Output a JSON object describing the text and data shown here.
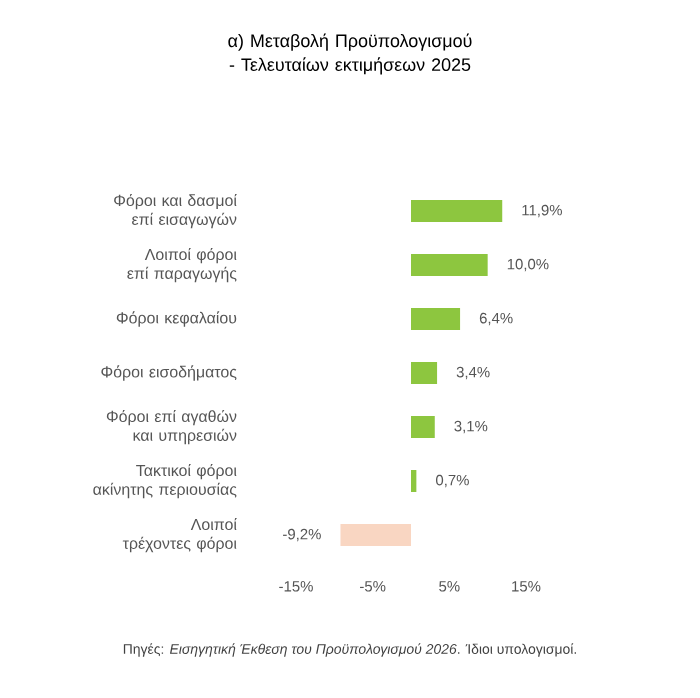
{
  "chart_data": {
    "type": "bar",
    "orientation": "horizontal",
    "title": "α) Μεταβολή Προϋπολογισμού - Τελευταίων εκτιμήσεων 2025",
    "categories": [
      "Φόροι και δασμοί επί εισαγωγών",
      "Λοιποί φόροι επί παραγωγής",
      "Φόροι κεφαλαίου",
      "Φόροι εισοδήματος",
      "Φόροι επί αγαθών και υπηρεσιών",
      "Τακτικοί φόροι ακίνητης περιουσίας",
      "Λοιποί τρέχοντες φόροι"
    ],
    "values": [
      11.9,
      10.0,
      6.4,
      3.4,
      3.1,
      0.7,
      -9.2
    ],
    "value_labels": [
      "11,9%",
      "10,0%",
      "6,4%",
      "3,4%",
      "3,1%",
      "0,7%",
      "-9,2%"
    ],
    "colors": [
      "#8dc63f",
      "#8dc63f",
      "#8dc63f",
      "#8dc63f",
      "#8dc63f",
      "#8dc63f",
      "#f9d6c2"
    ],
    "xlim": [
      -15,
      15
    ],
    "xticks": [
      {
        "value": -15,
        "label": "-15%"
      },
      {
        "value": -5,
        "label": "-5%"
      },
      {
        "value": 5,
        "label": "5%"
      },
      {
        "value": 15,
        "label": "15%"
      }
    ],
    "grid": false,
    "annotations": [
      "Πηγές: *Εισηγητική Έκθεση του Προϋπολογισμού 2026*. Ίδιοι υπολογισμοί."
    ]
  }
}
